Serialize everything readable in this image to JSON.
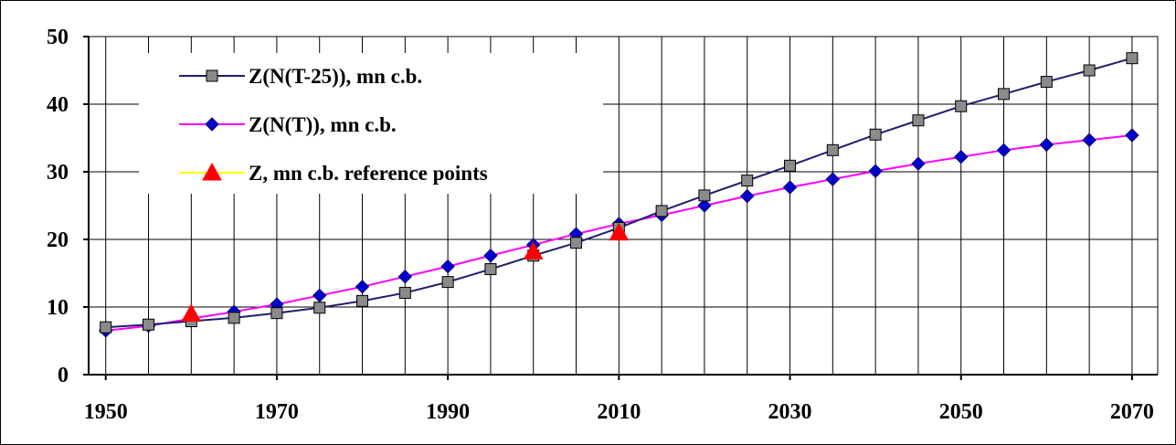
{
  "chart_data": {
    "type": "line",
    "title": "",
    "xlabel": "",
    "ylabel": "",
    "xlim": [
      1948,
      2073
    ],
    "ylim": [
      0,
      50
    ],
    "x_ticks": [
      "1950",
      "1970",
      "1990",
      "2010",
      "2030",
      "2050",
      "2070"
    ],
    "y_ticks": [
      "0",
      "10",
      "20",
      "30",
      "40",
      "50"
    ],
    "grid": true,
    "legend_position": "top-left",
    "series": [
      {
        "name": "Z(N(T-25)), mn c.b.",
        "line_color": "#1f1f6e",
        "marker_color": "#8a8a8a",
        "marker": "square",
        "x": [
          1950,
          1955,
          1960,
          1965,
          1970,
          1975,
          1980,
          1985,
          1990,
          1995,
          2000,
          2005,
          2010,
          2015,
          2020,
          2025,
          2030,
          2035,
          2040,
          2045,
          2050,
          2055,
          2060,
          2065,
          2070
        ],
        "y": [
          7.0,
          7.4,
          7.9,
          8.4,
          9.1,
          9.9,
          10.9,
          12.1,
          13.7,
          15.6,
          17.6,
          19.5,
          21.7,
          24.2,
          26.5,
          28.7,
          30.9,
          33.2,
          35.5,
          37.6,
          39.7,
          41.5,
          43.3,
          45.0,
          46.8
        ]
      },
      {
        "name": "Z(N(T)), mn c.b.",
        "line_color": "#ff00ff",
        "marker_color": "#0000cc",
        "marker": "diamond",
        "x": [
          1950,
          1955,
          1960,
          1965,
          1970,
          1975,
          1980,
          1985,
          1990,
          1995,
          2000,
          2005,
          2010,
          2015,
          2020,
          2025,
          2030,
          2035,
          2040,
          2045,
          2050,
          2055,
          2060,
          2065,
          2070
        ],
        "y": [
          6.5,
          7.2,
          8.3,
          9.3,
          10.4,
          11.7,
          13.0,
          14.5,
          16.0,
          17.6,
          19.2,
          20.8,
          22.3,
          23.6,
          25.0,
          26.4,
          27.7,
          28.9,
          30.1,
          31.2,
          32.2,
          33.2,
          34.0,
          34.7,
          35.4
        ]
      },
      {
        "name": "Z, mn c.b. reference points",
        "line_color": "#ffff00",
        "marker_color": "#ff0000",
        "marker": "triangle",
        "line": false,
        "x": [
          1960,
          2000,
          2010
        ],
        "y": [
          9.0,
          18.2,
          21.0
        ]
      }
    ]
  }
}
